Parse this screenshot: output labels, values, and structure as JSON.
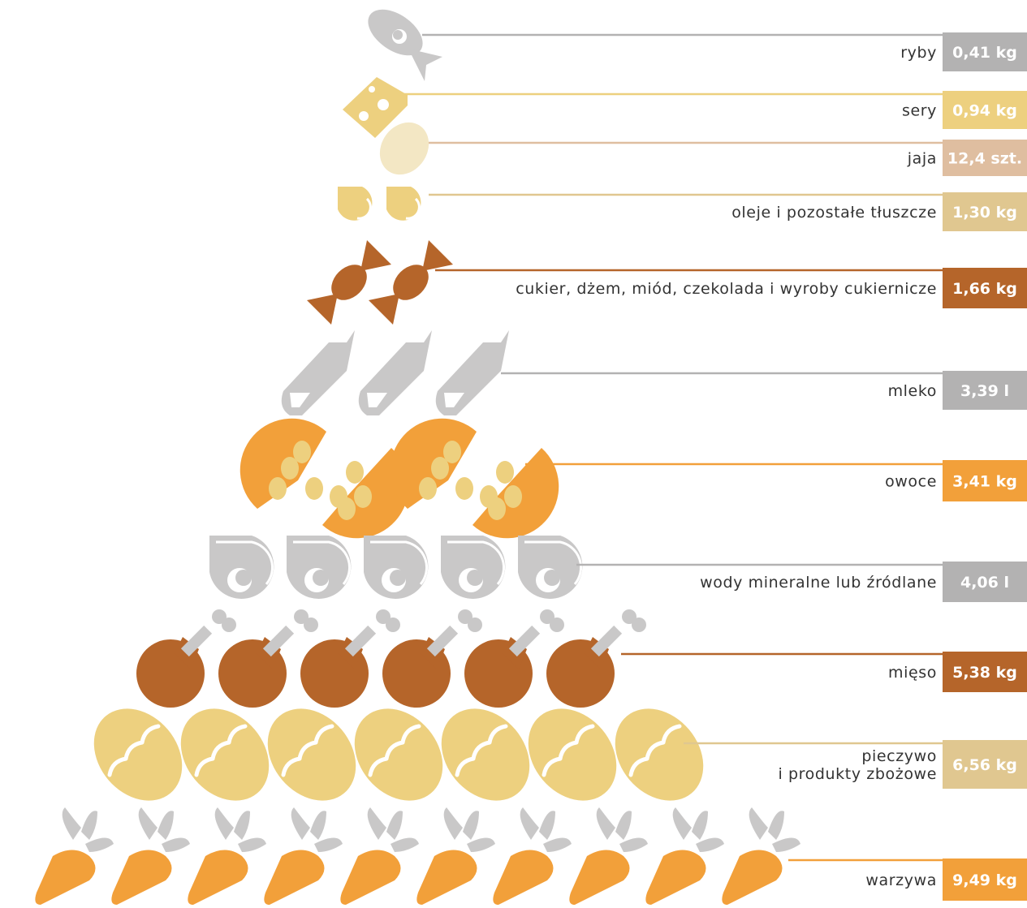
{
  "chart_data": {
    "type": "pictograph",
    "title": "",
    "categories": [
      {
        "key": "fish",
        "label": "ryby",
        "value": 0.41,
        "unit": "kg",
        "display": "0,41 kg",
        "color": "#b3b2b2",
        "icons": 1
      },
      {
        "key": "cheese",
        "label": "sery",
        "value": 0.94,
        "unit": "kg",
        "display": "0,94 kg",
        "color": "#edd07f",
        "icons": 1
      },
      {
        "key": "eggs",
        "label": "jaja",
        "value": 12.4,
        "unit": "szt.",
        "display": "12,4 szt.",
        "color": "#dfbea0",
        "icons": 1
      },
      {
        "key": "oils",
        "label": "oleje i pozostałe tłuszcze",
        "value": 1.3,
        "unit": "kg",
        "display": "1,30 kg",
        "color": "#e0c790",
        "icons": 2
      },
      {
        "key": "sugar",
        "label": "cukier, dżem, miód, czekolada i wyroby cukiernicze",
        "value": 1.66,
        "unit": "kg",
        "display": "1,66 kg",
        "color": "#b5652a",
        "icons": 2
      },
      {
        "key": "milk",
        "label": "mleko",
        "value": 3.39,
        "unit": "l",
        "display": "3,39 l",
        "color": "#b3b2b2",
        "icons": 3
      },
      {
        "key": "fruit",
        "label": "owoce",
        "value": 3.41,
        "unit": "kg",
        "display": "3,41 kg",
        "color": "#f2a03a",
        "icons": 2
      },
      {
        "key": "water",
        "label": "wody mineralne lub źródlane",
        "value": 4.06,
        "unit": "l",
        "display": "4,06 l",
        "color": "#b3b2b2",
        "icons": 5
      },
      {
        "key": "meat",
        "label": "mięso",
        "value": 5.38,
        "unit": "kg",
        "display": "5,38 kg",
        "color": "#b5652a",
        "icons": 6
      },
      {
        "key": "bread",
        "label": "pieczywo\ni produkty zbożowe",
        "value": 6.56,
        "unit": "kg",
        "display": "6,56 kg",
        "color": "#e0c790",
        "icons": 7
      },
      {
        "key": "vegetables",
        "label": "warzywa",
        "value": 9.49,
        "unit": "kg",
        "display": "9,49 kg",
        "color": "#f2a03a",
        "icons": 10
      }
    ]
  }
}
